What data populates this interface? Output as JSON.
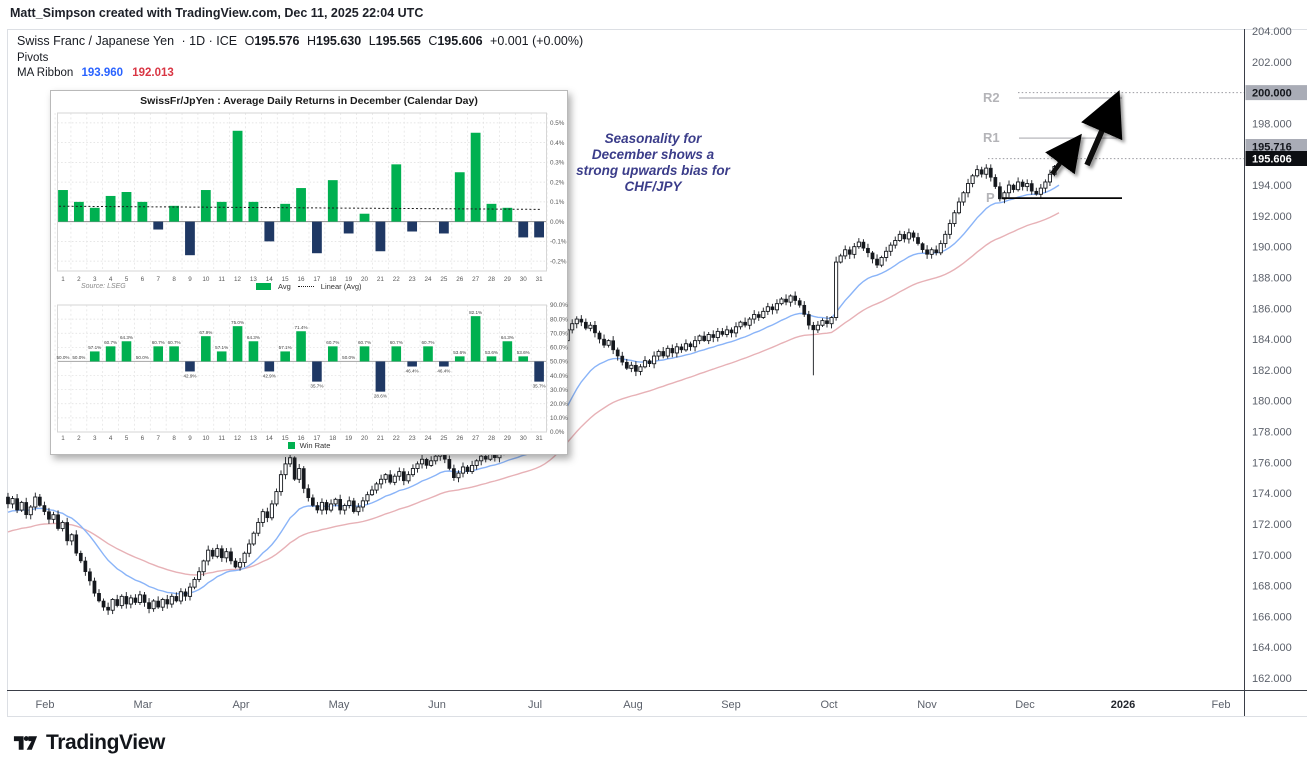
{
  "attribution": "Matt_Simpson created with TradingView.com, Dec 11, 2025 22:04 UTC",
  "header": {
    "symbol": "Swiss Franc / Japanese Yen",
    "meta": "· 1D · ICE",
    "ohlc": {
      "o_label": "O",
      "o": "195.576",
      "h_label": "H",
      "h": "195.630",
      "l_label": "L",
      "l": "195.565",
      "c_label": "C",
      "c": "195.606",
      "change": "+0.001 (+0.00%)"
    },
    "pivots_label": "Pivots",
    "ma_ribbon": {
      "name": "MA Ribbon",
      "fast": "193.960",
      "slow": "192.013",
      "fast_color": "#2962ff",
      "slow_color": "#d93644"
    }
  },
  "annotation": {
    "lines": [
      "Seasonality for",
      "December shows a",
      "strong upwards bias for",
      "CHF/JPY"
    ],
    "color": "#3b3d8a"
  },
  "drawings": {
    "r2_label": "R2",
    "r1_label": "R1",
    "pivot_label": "P"
  },
  "price_axis": {
    "ticks": [
      "204.000",
      "202.000",
      "198.000",
      "194.000",
      "192.000",
      "190.000",
      "188.000",
      "186.000",
      "184.000",
      "182.000",
      "180.000",
      "178.000",
      "176.000",
      "174.000",
      "172.000",
      "170.000",
      "168.000",
      "166.000",
      "164.000",
      "162.000"
    ],
    "badges": {
      "round_level": "200.000",
      "pivot_level": "195.716",
      "last_price": "195.606"
    }
  },
  "time_axis": {
    "labels": [
      "Feb",
      "Mar",
      "Apr",
      "May",
      "Jun",
      "Jul",
      "Aug",
      "Sep",
      "Oct",
      "Nov",
      "Dec",
      "2026",
      "Feb"
    ],
    "year_label_index": 11
  },
  "logo": {
    "text": "TradingView"
  },
  "chart_data": [
    {
      "type": "candlestick",
      "title": "Swiss Franc / Japanese Yen 1D",
      "ylim": [
        162,
        204
      ],
      "closes": [
        173.3,
        173.65,
        172.9,
        173.4,
        172.6,
        173.1,
        173.75,
        173.2,
        172.8,
        172.3,
        172.6,
        171.7,
        172.1,
        170.9,
        171.3,
        170.1,
        169.6,
        168.9,
        168.3,
        167.5,
        167.0,
        166.6,
        166.4,
        167.1,
        166.7,
        167.3,
        166.8,
        167.2,
        166.9,
        167.4,
        166.9,
        166.5,
        167.0,
        166.6,
        167.1,
        166.8,
        167.3,
        167.0,
        167.6,
        167.3,
        167.9,
        168.4,
        168.9,
        169.6,
        170.3,
        169.9,
        170.4,
        169.8,
        170.2,
        169.6,
        169.2,
        169.5,
        170.1,
        170.7,
        171.4,
        172.1,
        172.8,
        172.4,
        173.3,
        174.1,
        175.2,
        175.9,
        176.3,
        174.9,
        175.6,
        174.3,
        173.7,
        173.2,
        172.9,
        173.4,
        172.9,
        173.3,
        173.6,
        172.9,
        173.2,
        173.5,
        172.8,
        173.1,
        173.5,
        173.9,
        174.2,
        174.6,
        174.9,
        175.2,
        174.7,
        175.1,
        175.4,
        174.8,
        175.2,
        175.6,
        175.9,
        176.2,
        175.8,
        176.1,
        176.4,
        176.7,
        176.2,
        175.6,
        175.0,
        175.3,
        175.7,
        175.4,
        175.8,
        176.1,
        176.4,
        176.2,
        176.6,
        176.3,
        176.7,
        176.9,
        177.2,
        176.9,
        177.1,
        177.4,
        177.2,
        177.5,
        177.8,
        178.6,
        179.5,
        180.6,
        181.8,
        182.9,
        183.9,
        184.6,
        185.0,
        185.3,
        185.1,
        184.7,
        184.9,
        184.4,
        184.0,
        183.6,
        183.9,
        183.3,
        182.9,
        182.5,
        182.1,
        182.3,
        181.9,
        182.2,
        182.6,
        182.4,
        182.9,
        183.2,
        182.9,
        183.4,
        183.1,
        183.5,
        183.3,
        183.7,
        183.5,
        183.9,
        184.2,
        183.9,
        184.3,
        184.1,
        184.5,
        184.3,
        184.6,
        184.4,
        184.8,
        185.1,
        184.9,
        185.3,
        185.6,
        185.4,
        185.8,
        186.1,
        185.9,
        186.3,
        186.6,
        186.4,
        186.8,
        186.5,
        186.2,
        185.6,
        184.9,
        184.6,
        184.9,
        185.2,
        185.0,
        185.4,
        189.0,
        189.4,
        189.8,
        189.5,
        190.0,
        190.3,
        189.9,
        189.6,
        189.2,
        188.8,
        189.3,
        189.7,
        190.1,
        190.4,
        190.8,
        190.5,
        190.9,
        190.6,
        190.2,
        189.8,
        189.5,
        189.8,
        189.6,
        190.2,
        190.8,
        191.5,
        192.2,
        192.9,
        193.5,
        194.1,
        194.6,
        195.0,
        194.7,
        195.1,
        194.5,
        193.9,
        193.1,
        193.5,
        194.0,
        193.7,
        194.2,
        193.9,
        194.1,
        193.6,
        193.4,
        193.8,
        194.2,
        194.7,
        195.2,
        195.61
      ],
      "wick_overrides": {
        "61": {
          "h": 0.45
        },
        "96": {
          "h": 0.65
        },
        "177": {
          "l": 2.95
        },
        "182": {
          "h": 0.35,
          "l": 0.2
        }
      },
      "last_ohlc": {
        "open": 195.576,
        "high": 195.63,
        "low": 195.565,
        "close": 195.606
      },
      "ma_ribbon": {
        "fast_period": 18,
        "slow_period": 44,
        "fast_value": 193.96,
        "slow_value": 192.013,
        "fast_color": "#8ab4f8",
        "slow_color": "#e7b1b6"
      },
      "levels": {
        "dotted_round": 200.0,
        "r2_ray": 199.65,
        "r1_ray": 197.05,
        "dotted_pivot": 195.716,
        "support_line": 193.15
      }
    },
    {
      "type": "bar",
      "title": "SwissFr/JpYen : Average Daily Returns in December (Calendar Day)",
      "categories": [
        1,
        2,
        3,
        4,
        5,
        6,
        7,
        8,
        9,
        10,
        11,
        12,
        13,
        14,
        15,
        16,
        17,
        18,
        19,
        20,
        21,
        22,
        23,
        24,
        25,
        26,
        27,
        28,
        29,
        30,
        31
      ],
      "values": [
        0.16,
        0.1,
        0.07,
        0.13,
        0.15,
        0.1,
        -0.04,
        0.08,
        -0.17,
        0.16,
        0.1,
        0.46,
        0.1,
        -0.1,
        0.09,
        0.17,
        -0.16,
        0.21,
        -0.06,
        0.04,
        -0.15,
        0.29,
        -0.05,
        0.0,
        -0.06,
        0.25,
        0.45,
        0.09,
        0.07,
        -0.08,
        -0.08
      ],
      "ylim": [
        -0.25,
        0.55
      ],
      "ytick_labels": [
        "0.5%",
        "0.4%",
        "0.3%",
        "0.2%",
        "0.1%",
        "0.0%",
        "-0.1%",
        "-0.2%"
      ],
      "linear_avg_trend": [
        0.078,
        0.062
      ],
      "legend": [
        "Avg",
        "Linear (Avg)"
      ],
      "source": "Source: LSEG",
      "positive_color": "#00B050",
      "negative_color": "#1F3864"
    },
    {
      "type": "bar",
      "categories": [
        1,
        2,
        3,
        4,
        5,
        6,
        7,
        8,
        9,
        10,
        11,
        12,
        13,
        14,
        15,
        16,
        17,
        18,
        19,
        20,
        21,
        22,
        23,
        24,
        25,
        26,
        27,
        28,
        29,
        30,
        31
      ],
      "values": [
        50.0,
        50.0,
        57.1,
        60.7,
        64.3,
        50.0,
        60.7,
        60.7,
        42.9,
        67.9,
        57.1,
        75.0,
        64.3,
        42.9,
        57.1,
        71.4,
        35.7,
        60.7,
        50.0,
        60.7,
        28.6,
        60.7,
        46.4,
        60.7,
        46.4,
        53.6,
        82.1,
        53.6,
        64.3,
        53.6,
        35.7
      ],
      "baseline": 50,
      "ylim": [
        0,
        90
      ],
      "ytick_labels": [
        "90.0%",
        "80.0%",
        "70.0%",
        "60.0%",
        "50.0%",
        "40.0%",
        "30.0%",
        "20.0%",
        "10.0%",
        "0.0%"
      ],
      "legend": [
        "Win Rate"
      ],
      "positive_color": "#00B050",
      "negative_color": "#1F3864"
    }
  ]
}
